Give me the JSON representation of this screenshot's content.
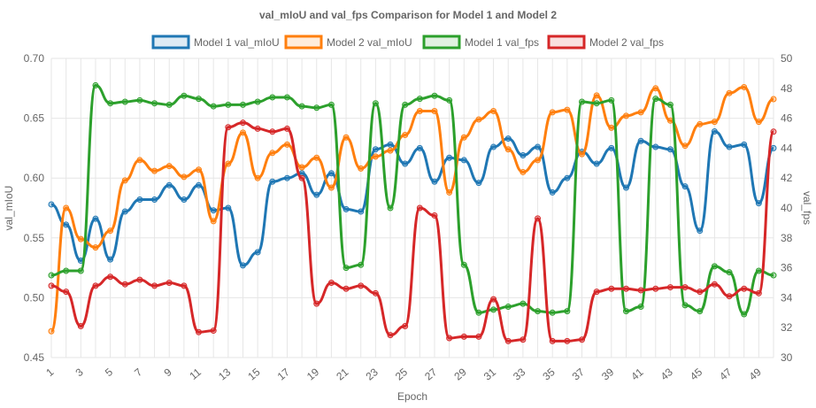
{
  "chart_data": {
    "type": "line",
    "title": "val_mIoU and val_fps Comparison for Model 1 and Model 2",
    "xlabel": "Epoch",
    "ylabel_left": "val_mIoU",
    "ylabel_right": "val_fps",
    "ylim_left": [
      0.45,
      0.7
    ],
    "ylim_right": [
      30,
      50
    ],
    "yticks_left": [
      "0.45",
      "0.50",
      "0.55",
      "0.60",
      "0.65",
      "0.70"
    ],
    "yticks_right": [
      "30",
      "32",
      "34",
      "36",
      "38",
      "40",
      "42",
      "44",
      "46",
      "48",
      "50"
    ],
    "x": [
      1,
      2,
      3,
      4,
      5,
      6,
      7,
      8,
      9,
      10,
      11,
      12,
      13,
      14,
      15,
      16,
      17,
      18,
      19,
      20,
      21,
      22,
      23,
      24,
      25,
      26,
      27,
      28,
      29,
      30,
      31,
      32,
      33,
      34,
      35,
      36,
      37,
      38,
      39,
      40,
      41,
      42,
      43,
      44,
      45,
      46,
      47,
      48,
      49,
      50
    ],
    "xtick_labels": [
      "1",
      "3",
      "5",
      "7",
      "9",
      "11",
      "13",
      "15",
      "17",
      "19",
      "21",
      "23",
      "25",
      "27",
      "29",
      "31",
      "33",
      "35",
      "37",
      "39",
      "41",
      "43",
      "45",
      "47",
      "49"
    ],
    "grid": true,
    "legend_position": "top",
    "series": [
      {
        "name": "Model 1 val_mIoU",
        "axis": "left",
        "color": "#1f77b4",
        "values": [
          0.578,
          0.561,
          0.531,
          0.566,
          0.532,
          0.572,
          0.582,
          0.582,
          0.594,
          0.582,
          0.594,
          0.573,
          0.575,
          0.527,
          0.538,
          0.597,
          0.6,
          0.604,
          0.586,
          0.604,
          0.574,
          0.572,
          0.624,
          0.628,
          0.612,
          0.625,
          0.597,
          0.617,
          0.615,
          0.596,
          0.626,
          0.633,
          0.619,
          0.626,
          0.588,
          0.6,
          0.622,
          0.612,
          0.625,
          0.592,
          0.631,
          0.626,
          0.624,
          0.593,
          0.556,
          0.639,
          0.626,
          0.628,
          0.579,
          0.625
        ]
      },
      {
        "name": "Model 2 val_mIoU",
        "axis": "left",
        "color": "#ff7f0e",
        "values": [
          0.472,
          0.575,
          0.549,
          0.542,
          0.556,
          0.598,
          0.615,
          0.606,
          0.61,
          0.601,
          0.607,
          0.564,
          0.612,
          0.638,
          0.6,
          0.621,
          0.628,
          0.609,
          0.617,
          0.592,
          0.634,
          0.608,
          0.618,
          0.623,
          0.636,
          0.656,
          0.656,
          0.588,
          0.634,
          0.649,
          0.656,
          0.624,
          0.605,
          0.615,
          0.655,
          0.657,
          0.62,
          0.669,
          0.642,
          0.652,
          0.655,
          0.675,
          0.648,
          0.627,
          0.645,
          0.647,
          0.671,
          0.676,
          0.647,
          0.666
        ]
      },
      {
        "name": "Model 1 val_fps",
        "axis": "right",
        "color": "#2ca02c",
        "values": [
          35.5,
          35.8,
          35.8,
          48.2,
          47.0,
          47.1,
          47.2,
          47.0,
          46.9,
          47.5,
          47.3,
          46.8,
          46.9,
          46.9,
          47.1,
          47.4,
          47.4,
          46.8,
          46.7,
          46.9,
          36.0,
          36.2,
          47.0,
          40.0,
          46.9,
          47.3,
          47.5,
          47.2,
          36.2,
          33.0,
          33.2,
          33.4,
          33.6,
          33.1,
          33.0,
          33.1,
          47.1,
          47.0,
          47.2,
          33.1,
          33.4,
          47.3,
          46.9,
          33.5,
          33.1,
          36.1,
          35.7,
          32.9,
          35.8,
          35.5
        ]
      },
      {
        "name": "Model 2 val_fps",
        "axis": "right",
        "color": "#d62728",
        "values": [
          34.8,
          34.4,
          32.1,
          34.8,
          35.4,
          34.9,
          35.2,
          34.8,
          35.0,
          34.8,
          31.7,
          31.8,
          45.4,
          45.7,
          45.3,
          45.1,
          45.3,
          42.0,
          33.6,
          35.0,
          34.6,
          34.8,
          34.3,
          31.5,
          32.1,
          40.0,
          39.5,
          31.3,
          31.4,
          31.4,
          33.9,
          31.1,
          31.2,
          39.3,
          31.1,
          31.1,
          31.2,
          34.4,
          34.6,
          34.6,
          34.5,
          34.6,
          34.7,
          34.7,
          34.4,
          34.9,
          34.1,
          34.6,
          34.3,
          45.1
        ]
      }
    ]
  }
}
